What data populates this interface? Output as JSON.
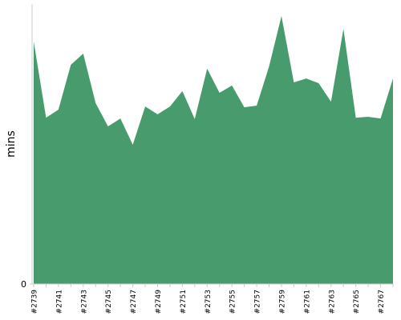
{
  "chart_data": {
    "type": "area",
    "y_label": "mins",
    "color": "#489b6c",
    "categories": [
      "#2739",
      null,
      "#2741",
      null,
      "#2743",
      null,
      "#2745",
      null,
      "#2747",
      null,
      "#2749",
      null,
      "#2751",
      null,
      "#2753",
      null,
      "#2755",
      null,
      "#2757",
      null,
      "#2759",
      null,
      "#2761",
      null,
      "#2763",
      null,
      "#2765",
      null,
      "#2767",
      null
    ],
    "values": [
      86.6,
      59.4,
      62.3,
      78.3,
      82.3,
      64.6,
      56.3,
      59.1,
      49.7,
      63.4,
      60.6,
      63.4,
      68.9,
      58.9,
      76.9,
      68.3,
      70.9,
      63.1,
      63.7,
      77.7,
      95.7,
      72.0,
      73.4,
      71.7,
      65.1,
      91.1,
      59.4,
      59.7,
      59.1,
      73.4
    ],
    "ylim": [
      0,
      100
    ],
    "yticks": [
      0
    ]
  }
}
